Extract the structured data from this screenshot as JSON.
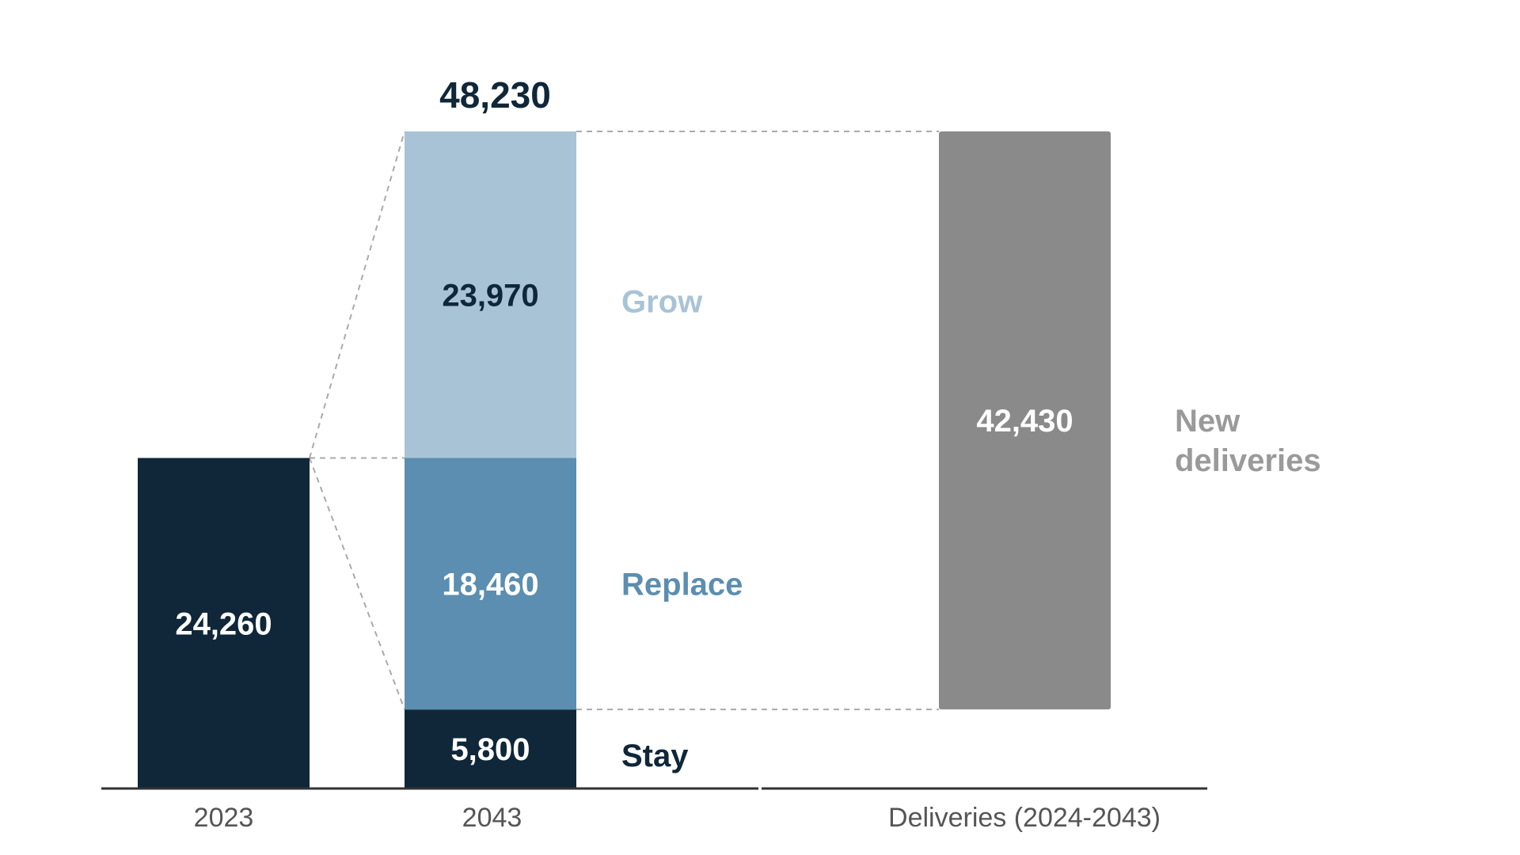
{
  "chart_data": {
    "type": "bar",
    "title": "",
    "xlabel": "",
    "ylabel": "",
    "ylim": [
      0,
      48230
    ],
    "categories": [
      "2023",
      "2043",
      "Deliveries (2024-2043)"
    ],
    "total_label": "48,230",
    "bars": {
      "base_2023": {
        "value": 24260,
        "label": "24,260"
      },
      "stay": {
        "value": 5800,
        "label": "5,800",
        "legend": "Stay"
      },
      "replace": {
        "value": 18460,
        "label": "18,460",
        "legend": "Replace"
      },
      "grow": {
        "value": 23970,
        "label": "23,970",
        "legend": "Grow"
      },
      "deliveries": {
        "value": 42430,
        "label": "42,430",
        "legend_line1": "New",
        "legend_line2": "deliveries"
      }
    },
    "colors": {
      "dark": "#0f2738",
      "replace": "#5b8eb0",
      "grow": "#a9c3d6",
      "deliveries": "#8a8a8a",
      "axis": "#333333",
      "dashed": "#aaaaaa",
      "axis_label": "#555555",
      "new_deliveries_label": "#9a9a9a"
    }
  }
}
